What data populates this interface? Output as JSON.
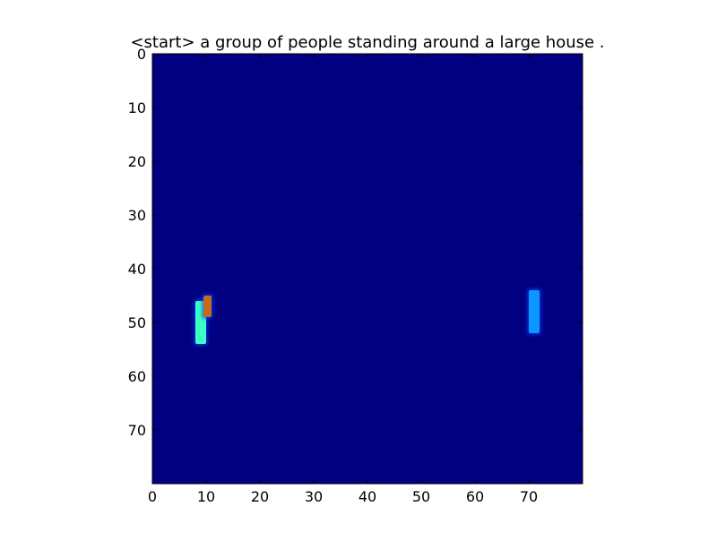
{
  "chart_data": {
    "type": "heatmap",
    "title": "<start> a group of people standing around a large house .",
    "xlabel": "",
    "ylabel": "",
    "grid": false,
    "legend": "none",
    "colormap": "jet",
    "xlim": [
      0,
      80
    ],
    "ylim": [
      80,
      0
    ],
    "x_ticks": [
      0,
      10,
      20,
      30,
      40,
      50,
      60,
      70
    ],
    "y_ticks": [
      0,
      10,
      20,
      30,
      40,
      50,
      60,
      70
    ],
    "background_value": 0.0,
    "background_color": "#000080",
    "regions": [
      {
        "name": "left-bright-bar",
        "x": [
          8,
          10
        ],
        "y": [
          46,
          54
        ],
        "value": 0.45,
        "color": "#3dffc4"
      },
      {
        "name": "left-hotspot",
        "x": [
          9.5,
          11
        ],
        "y": [
          45,
          49
        ],
        "value": 0.8,
        "color": "#c86a1e"
      },
      {
        "name": "right-bar",
        "x": [
          70,
          72
        ],
        "y": [
          44,
          52
        ],
        "value": 0.3,
        "color": "#0a98ff"
      }
    ]
  }
}
